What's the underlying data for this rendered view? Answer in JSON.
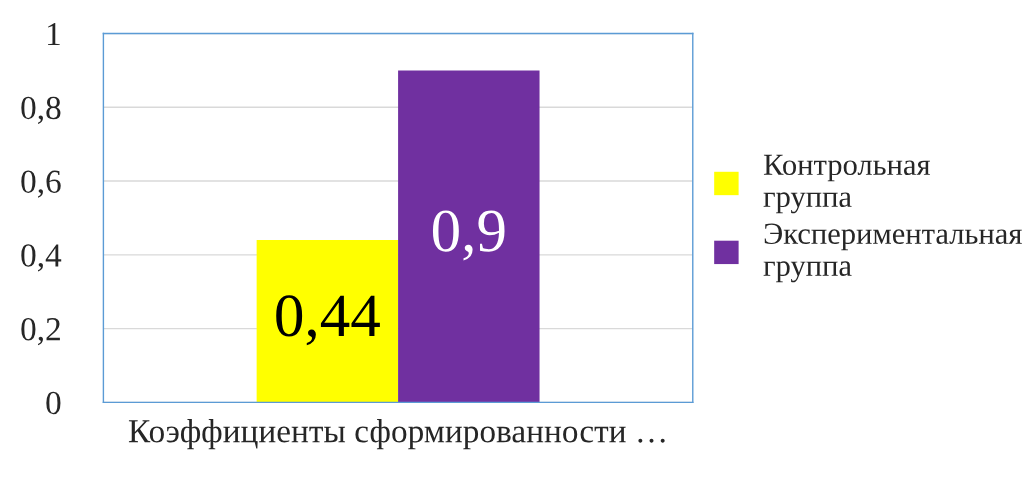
{
  "chart_data": {
    "type": "bar",
    "categories": [
      "Коэффициенты сформированности …"
    ],
    "series": [
      {
        "name": "Контрольная группа",
        "color": "#ffff00",
        "values": [
          0.44
        ],
        "value_labels": [
          "0,44"
        ]
      },
      {
        "name": "Экспериментальная группа",
        "color": "#7030a0",
        "values": [
          0.9
        ],
        "value_labels": [
          "0,9"
        ]
      }
    ],
    "ylim": [
      0,
      1
    ],
    "yticks": [
      0,
      {
        "value": 0.2,
        "label": "0,2"
      },
      {
        "value": 0.4,
        "label": "0,4"
      },
      {
        "value": 0.6,
        "label": "0,6"
      },
      {
        "value": 0.8,
        "label": "0,8"
      },
      1
    ],
    "grid": "y",
    "legend": "right"
  }
}
